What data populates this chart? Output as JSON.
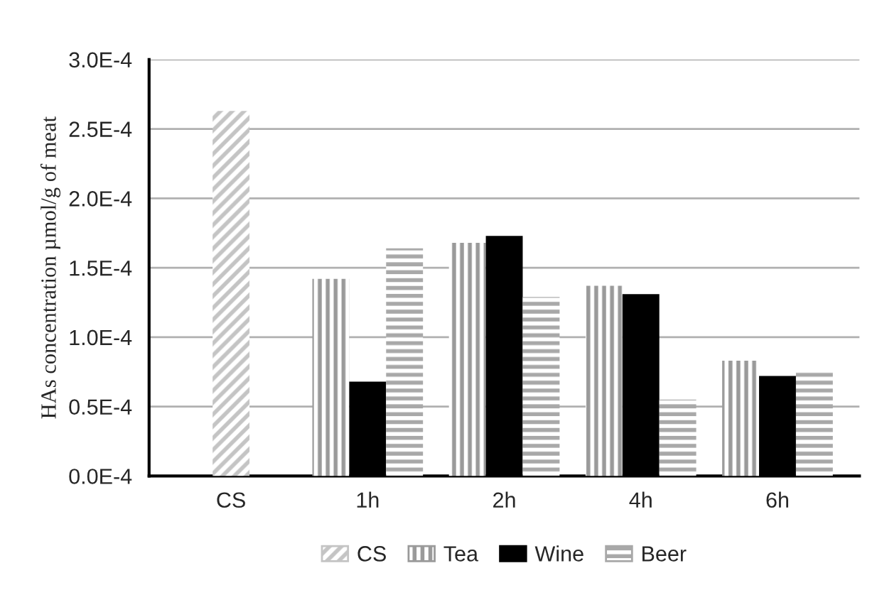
{
  "chart_data": {
    "type": "bar",
    "ylabel": "HAs concentration µmol/g of meat",
    "categories": [
      "CS",
      "1h",
      "2h",
      "4h",
      "6h"
    ],
    "series": [
      {
        "name": "CS",
        "color": "#c4c4c4",
        "values": [
          0.000263,
          null,
          null,
          null,
          null
        ]
      },
      {
        "name": "Tea",
        "color": "#9a9a9a",
        "values": [
          null,
          0.000142,
          0.000168,
          0.000137,
          8.3e-05
        ]
      },
      {
        "name": "Wine",
        "color": "#000000",
        "values": [
          null,
          6.8e-05,
          0.000173,
          0.000131,
          7.2e-05
        ]
      },
      {
        "name": "Beer",
        "color": "#a8a8a8",
        "values": [
          null,
          0.000164,
          0.000129,
          5.5e-05,
          7.6e-05
        ]
      }
    ],
    "ylim": [
      0,
      0.0003
    ],
    "yticks": [
      {
        "value": 0,
        "label": "0.0E-4"
      },
      {
        "value": 5e-05,
        "label": "0.5E-4"
      },
      {
        "value": 0.0001,
        "label": "1.0E-4"
      },
      {
        "value": 0.00015,
        "label": "1.5E-4"
      },
      {
        "value": 0.0002,
        "label": "2.0E-4"
      },
      {
        "value": 0.00025,
        "label": "2.5E-4"
      },
      {
        "value": 0.0003,
        "label": "3.0E-4"
      }
    ],
    "grid": "y",
    "legend": "bottom"
  }
}
